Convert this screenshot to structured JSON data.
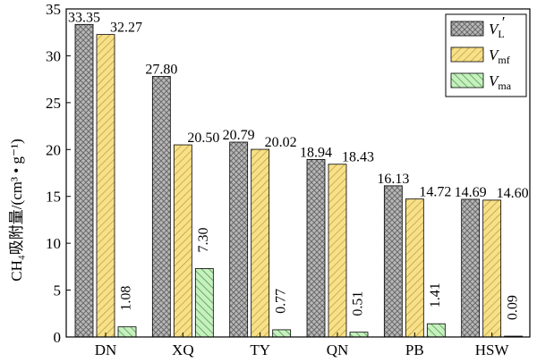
{
  "chart_data": {
    "type": "bar",
    "categories": [
      "DN",
      "XQ",
      "TY",
      "QN",
      "PB",
      "HSW"
    ],
    "series": [
      {
        "name": "V_L'",
        "legend_main": "V",
        "legend_sub": "L",
        "legend_sup": "′",
        "values": [
          33.35,
          27.8,
          20.79,
          18.94,
          16.13,
          14.69
        ],
        "pattern": "crosshatch",
        "color": "#b0b0b0"
      },
      {
        "name": "V_mf",
        "legend_main": "V",
        "legend_sub": "mf",
        "legend_sup": "",
        "values": [
          32.27,
          20.5,
          20.02,
          18.43,
          14.72,
          14.6
        ],
        "pattern": "diagonal",
        "color": "#f5dc78"
      },
      {
        "name": "V_ma",
        "legend_main": "V",
        "legend_sub": "ma",
        "legend_sup": "",
        "values": [
          1.08,
          7.3,
          0.77,
          0.51,
          1.41,
          0.09
        ],
        "pattern": "diagonal",
        "color": "#a8e0a0"
      }
    ],
    "data_labels": [
      [
        "33.35",
        "32.27",
        "1.08"
      ],
      [
        "27.80",
        "20.50",
        "7.30"
      ],
      [
        "20.79",
        "20.02",
        "0.77"
      ],
      [
        "18.94",
        "18.43",
        "0.51"
      ],
      [
        "16.13",
        "14.72",
        "1.41"
      ],
      [
        "14.69",
        "14.60",
        "0.09"
      ]
    ],
    "ylabel": "CH₄吸附量/(cm³ • g⁻¹)",
    "ylim": [
      0,
      35
    ],
    "yticks": [
      0,
      5,
      10,
      15,
      20,
      25,
      30,
      35
    ],
    "legend_position": "top-right",
    "grid": false
  }
}
